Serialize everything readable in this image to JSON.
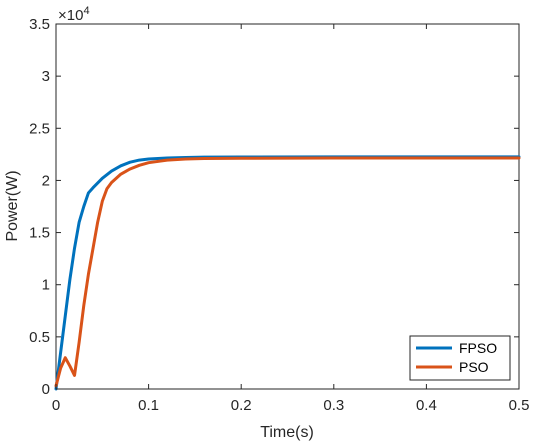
{
  "chart_data": {
    "type": "line",
    "xlabel": "Time(s)",
    "ylabel": "Power(W)",
    "xlim": [
      0,
      0.5
    ],
    "ylim": [
      0,
      35000
    ],
    "x_ticks": [
      0,
      0.1,
      0.2,
      0.3,
      0.4,
      0.5
    ],
    "x_tick_labels": [
      "0",
      "0.1",
      "0.2",
      "0.3",
      "0.4",
      "0.5"
    ],
    "y_ticks": [
      0,
      5000,
      10000,
      15000,
      20000,
      25000,
      30000,
      35000
    ],
    "y_tick_labels": [
      "0",
      "0.5",
      "1",
      "1.5",
      "2",
      "2.5",
      "3",
      "3.5"
    ],
    "y_exponent": {
      "base": "×10",
      "power": "4"
    },
    "grid": false,
    "legend_position": "bottom-right",
    "series": [
      {
        "name": "FPSO",
        "color": "#0072BD",
        "x": [
          0,
          0.005,
          0.01,
          0.015,
          0.02,
          0.025,
          0.03,
          0.035,
          0.04,
          0.05,
          0.06,
          0.07,
          0.08,
          0.09,
          0.1,
          0.12,
          0.14,
          0.16,
          0.2,
          0.3,
          0.4,
          0.5
        ],
        "y": [
          0,
          3500,
          7000,
          10500,
          13500,
          16000,
          17500,
          18800,
          19300,
          20200,
          20900,
          21400,
          21750,
          21950,
          22050,
          22150,
          22200,
          22230,
          22250,
          22260,
          22260,
          22260
        ]
      },
      {
        "name": "PSO",
        "color": "#D95319",
        "x": [
          0,
          0.005,
          0.01,
          0.015,
          0.02,
          0.025,
          0.03,
          0.035,
          0.04,
          0.045,
          0.05,
          0.055,
          0.06,
          0.07,
          0.08,
          0.09,
          0.1,
          0.12,
          0.14,
          0.16,
          0.2,
          0.3,
          0.4,
          0.5
        ],
        "y": [
          300,
          2000,
          3000,
          2200,
          1300,
          4500,
          8000,
          11000,
          13500,
          16000,
          18000,
          19200,
          19800,
          20600,
          21100,
          21450,
          21700,
          21950,
          22050,
          22100,
          22130,
          22150,
          22150,
          22150
        ]
      }
    ]
  }
}
